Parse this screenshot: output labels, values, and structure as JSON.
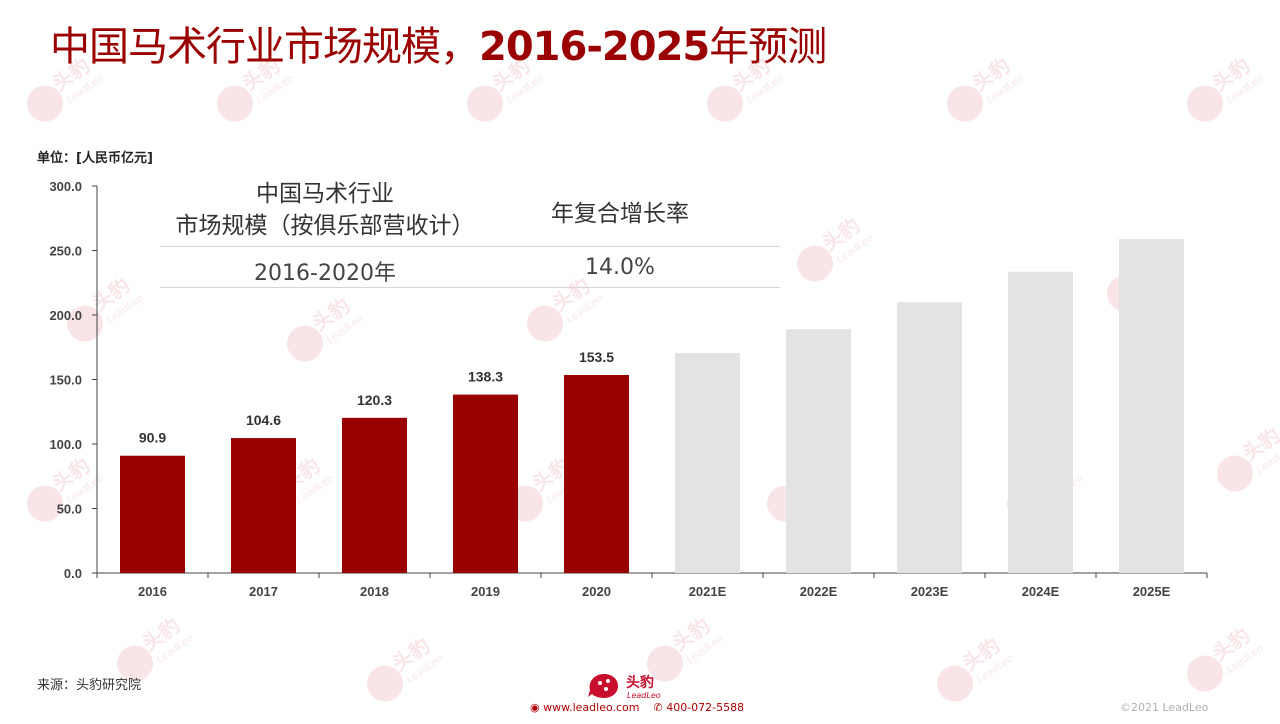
{
  "title": {
    "main": "中国马术行业市场规模，",
    "years": "2016-2025",
    "suffix": "年预测"
  },
  "unit_label": "单位：[人民币亿元]",
  "cagr_table": {
    "header_left": "中国马术行业\n市场规模（按俱乐部营收计）",
    "header_right": "年复合增长率",
    "row_left": "2016-2020年",
    "row_right": "14.0%"
  },
  "chart_data": {
    "type": "bar",
    "categories": [
      "2016",
      "2017",
      "2018",
      "2019",
      "2020",
      "2021E",
      "2022E",
      "2023E",
      "2024E",
      "2025E"
    ],
    "values": [
      90.9,
      104.6,
      120.3,
      138.3,
      153.5,
      170.5,
      189.0,
      210.0,
      233.5,
      259.0
    ],
    "data_labels": [
      "90.9",
      "104.6",
      "120.3",
      "138.3",
      "153.5",
      "",
      "",
      "",
      "",
      ""
    ],
    "y_ticks": [
      "0.0",
      "50.0",
      "100.0",
      "150.0",
      "200.0",
      "250.0",
      "300.0"
    ],
    "ylim": [
      0,
      300
    ],
    "grid": false,
    "colors": {
      "actual": "#990000",
      "forecast": "#e3e3e3"
    }
  },
  "source": "来源：头豹研究院",
  "footer": {
    "brand_cn": "头豹",
    "brand_en": "LeadLeo",
    "website": "www.leadleo.com",
    "phone": "400-072-5588",
    "copyright": "©2021 LeadLeo"
  },
  "watermark": {
    "cn": "头豹",
    "en": "LeadLeo"
  }
}
